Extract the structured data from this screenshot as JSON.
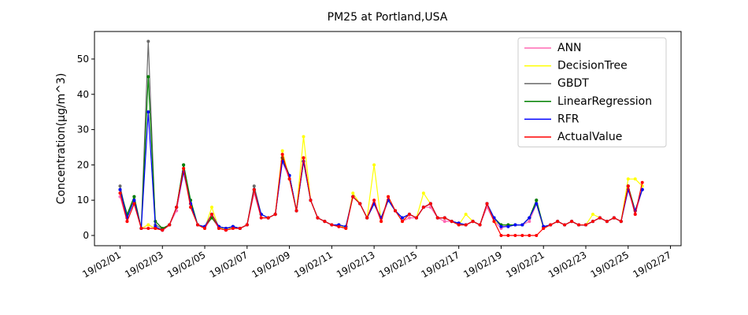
{
  "chart_data": {
    "type": "line",
    "title": "PM25 at Portland,USA",
    "ylabel": "Concentration(μg/m^3)",
    "ylim": [
      -2.9,
      57.8
    ],
    "yticks": [
      0,
      10,
      20,
      30,
      40,
      50
    ],
    "xlim": [
      "19/01/30 19:00",
      "19/02/27 12:00"
    ],
    "xticks": [
      "19/02/01",
      "19/02/03",
      "19/02/05",
      "19/02/07",
      "19/02/09",
      "19/02/11",
      "19/02/13",
      "19/02/15",
      "19/02/17",
      "19/02/19",
      "19/02/21",
      "19/02/23",
      "19/02/25",
      "19/02/27"
    ],
    "legend": "upper right",
    "x": [
      "19/02/01 00:00",
      "19/02/01 08:00",
      "19/02/01 16:00",
      "19/02/02 00:00",
      "19/02/02 08:00",
      "19/02/02 16:00",
      "19/02/03 00:00",
      "19/02/03 08:00",
      "19/02/03 16:00",
      "19/02/04 00:00",
      "19/02/04 08:00",
      "19/02/04 16:00",
      "19/02/05 00:00",
      "19/02/05 08:00",
      "19/02/05 16:00",
      "19/02/06 00:00",
      "19/02/06 08:00",
      "19/02/06 16:00",
      "19/02/07 00:00",
      "19/02/07 08:00",
      "19/02/07 16:00",
      "19/02/08 00:00",
      "19/02/08 08:00",
      "19/02/08 16:00",
      "19/02/09 00:00",
      "19/02/09 08:00",
      "19/02/09 16:00",
      "19/02/10 00:00",
      "19/02/10 08:00",
      "19/02/10 16:00",
      "19/02/11 00:00",
      "19/02/11 08:00",
      "19/02/11 16:00",
      "19/02/12 00:00",
      "19/02/12 08:00",
      "19/02/12 16:00",
      "19/02/13 00:00",
      "19/02/13 08:00",
      "19/02/13 16:00",
      "19/02/14 00:00",
      "19/02/14 08:00",
      "19/02/14 16:00",
      "19/02/15 00:00",
      "19/02/15 08:00",
      "19/02/15 16:00",
      "19/02/16 00:00",
      "19/02/16 08:00",
      "19/02/16 16:00",
      "19/02/17 00:00",
      "19/02/17 08:00",
      "19/02/17 16:00",
      "19/02/18 00:00",
      "19/02/18 08:00",
      "19/02/18 16:00",
      "19/02/19 00:00",
      "19/02/19 08:00",
      "19/02/19 16:00",
      "19/02/20 00:00",
      "19/02/20 08:00",
      "19/02/20 16:00",
      "19/02/21 00:00",
      "19/02/21 08:00",
      "19/02/21 16:00",
      "19/02/22 00:00",
      "19/02/22 08:00",
      "19/02/22 16:00",
      "19/02/23 00:00",
      "19/02/23 08:00",
      "19/02/23 16:00",
      "19/02/24 00:00",
      "19/02/24 08:00",
      "19/02/24 16:00",
      "19/02/25 00:00",
      "19/02/25 08:00",
      "19/02/25 16:00"
    ],
    "series": [
      {
        "name": "ANN",
        "color": "#ff69b4",
        "values": [
          11,
          4,
          9,
          2,
          3,
          2,
          1.5,
          3,
          7,
          18,
          8,
          3,
          2,
          5,
          2,
          1.5,
          2,
          2,
          3,
          12,
          5,
          5,
          6,
          21,
          16,
          7,
          21,
          10,
          5,
          4,
          3,
          2.5,
          2,
          11,
          9,
          5,
          9,
          4,
          10,
          7,
          4,
          5,
          5,
          8,
          8,
          5,
          4,
          4,
          3,
          3,
          4,
          3,
          8,
          4,
          2,
          3,
          3,
          3,
          4,
          9,
          2,
          3,
          4,
          3,
          4,
          3,
          3,
          4,
          5,
          4,
          5,
          4,
          13,
          6,
          13
        ]
      },
      {
        "name": "DecisionTree",
        "color": "#ffff00",
        "values": [
          12,
          5,
          10,
          2,
          3,
          2,
          2,
          3,
          8,
          19,
          8,
          3,
          2,
          8,
          2,
          2,
          2,
          2,
          3,
          13,
          6,
          5,
          6,
          24,
          16,
          7,
          28,
          10,
          5,
          4,
          3,
          3,
          2,
          12,
          9,
          5,
          20,
          4,
          11,
          7,
          4,
          6,
          5,
          12,
          9,
          5,
          5,
          4,
          3,
          6,
          4,
          3,
          9,
          4,
          3,
          3,
          3,
          3,
          5,
          9,
          2,
          3,
          4,
          3,
          4,
          3,
          3,
          6,
          5,
          4,
          5,
          4,
          16,
          16,
          14
        ]
      },
      {
        "name": "GBDT",
        "color": "#696969",
        "values": [
          14,
          5,
          11,
          2,
          55,
          3,
          2,
          3,
          8,
          20,
          9,
          3,
          2.5,
          6,
          2.5,
          2,
          2.5,
          2,
          3,
          14,
          6,
          5,
          6,
          22,
          17,
          7,
          22,
          10,
          5,
          4,
          3,
          3,
          2.5,
          11,
          9,
          5,
          9,
          5,
          10,
          7,
          5,
          6,
          5,
          8,
          9,
          5,
          5,
          4,
          3.5,
          3,
          4,
          3,
          9,
          5,
          3,
          3,
          3,
          3,
          5,
          10,
          2.5,
          3,
          4,
          3,
          4,
          3,
          3,
          4,
          5,
          4,
          5,
          4,
          14,
          7,
          13
        ]
      },
      {
        "name": "LinearRegression",
        "color": "#008000",
        "values": [
          13,
          6,
          11,
          2,
          45,
          4,
          2,
          3,
          8,
          20,
          10,
          3,
          2.5,
          5,
          2.5,
          2,
          2.5,
          2,
          3,
          13,
          6,
          5,
          6,
          22,
          17,
          7,
          21,
          10,
          5,
          4,
          3,
          3,
          2.5,
          11,
          9,
          5,
          9,
          5,
          10,
          7,
          5,
          6,
          5,
          8,
          9,
          5,
          5,
          4,
          3.5,
          3,
          4,
          3,
          9,
          5,
          3,
          3,
          3,
          3,
          5,
          10,
          2.5,
          3,
          4,
          3,
          4,
          3,
          3,
          4,
          5,
          4,
          5,
          4,
          14,
          7,
          13
        ]
      },
      {
        "name": "RFR",
        "color": "#0000ff",
        "values": [
          13,
          5,
          10,
          2,
          35,
          2.5,
          1.5,
          3,
          8,
          18,
          9,
          3,
          2.5,
          6,
          2.5,
          2,
          2.5,
          2,
          3,
          13,
          6,
          5,
          6,
          21,
          17,
          7,
          21,
          10,
          5,
          4,
          3,
          3,
          2.5,
          11,
          9,
          5,
          9,
          5,
          10,
          7,
          5,
          6,
          5,
          8,
          9,
          5,
          5,
          4,
          3.5,
          3,
          4,
          3,
          9,
          5,
          2.5,
          2.5,
          3,
          3,
          5,
          9,
          2.5,
          3,
          4,
          3,
          4,
          3,
          3,
          4,
          5,
          4,
          5,
          4,
          13,
          7,
          13
        ]
      },
      {
        "name": "ActualValue",
        "color": "#ff0000",
        "values": [
          12,
          4,
          9,
          2,
          2,
          2,
          1.5,
          3,
          8,
          19,
          8,
          3,
          2,
          6,
          2,
          1.5,
          2,
          2,
          3,
          13,
          5,
          5,
          6,
          23,
          16,
          7,
          22,
          10,
          5,
          4,
          3,
          2.5,
          2,
          11,
          9,
          5,
          10,
          4,
          11,
          7,
          4,
          6,
          5,
          8,
          9,
          5,
          5,
          4,
          3,
          3,
          4,
          3,
          9,
          4,
          0,
          0,
          0,
          0,
          0,
          0,
          2,
          3,
          4,
          3,
          4,
          3,
          3,
          4,
          5,
          4,
          5,
          4,
          14,
          6,
          15
        ]
      }
    ]
  }
}
